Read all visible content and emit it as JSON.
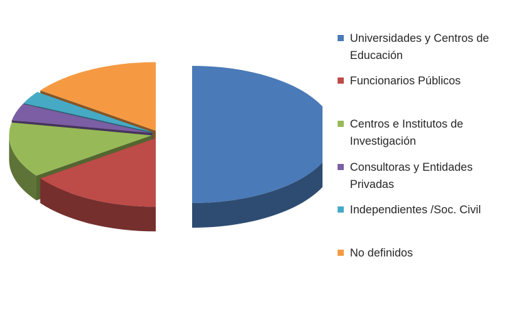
{
  "chart_data": {
    "type": "pie",
    "style": "3d-exploded",
    "title": "",
    "categories": [
      "Universidades y Centros de Educación",
      "Funcionarios Públicos",
      "Centros e Institutos de Investigación",
      "Consultoras y Entidades Privadas",
      "Independientes /Soc. Civil",
      "No definidos"
    ],
    "values": [
      50,
      15,
      13,
      4,
      3,
      15
    ],
    "colors": [
      "#4a7ab7",
      "#bd4b48",
      "#98b958",
      "#7b5ea3",
      "#46aac5",
      "#f59a42"
    ],
    "legend_position": "right"
  }
}
